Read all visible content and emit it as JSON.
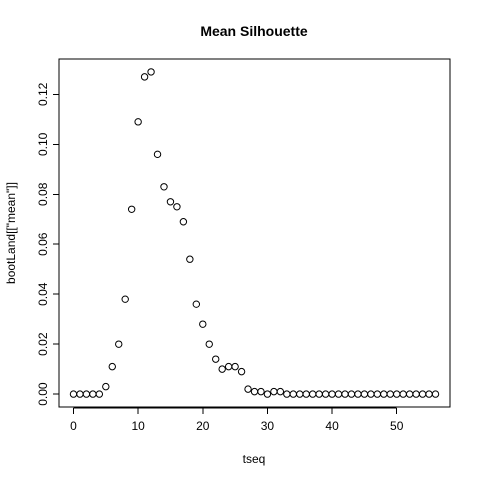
{
  "chart_data": {
    "type": "scatter",
    "title": "Mean Silhouette",
    "xlabel": "tseq",
    "ylabel": "bootLand[[\"mean\"]]",
    "xlim": [
      0,
      56
    ],
    "ylim": [
      0,
      0.13
    ],
    "x_ticks": [
      0,
      10,
      20,
      30,
      40,
      50
    ],
    "y_ticks": [
      0.0,
      0.02,
      0.04,
      0.06,
      0.08,
      0.1,
      0.12
    ],
    "x_tick_labels": [
      "0",
      "10",
      "20",
      "30",
      "40",
      "50"
    ],
    "y_tick_labels": [
      "0.00",
      "0.02",
      "0.04",
      "0.06",
      "0.08",
      "0.10",
      "0.12"
    ],
    "grid": false,
    "point_style": "open-circle",
    "series": [
      {
        "x": [
          0,
          1,
          2,
          3,
          4,
          5,
          6,
          7,
          8,
          9,
          10,
          11,
          12,
          13,
          14,
          15,
          16,
          17,
          18,
          19,
          20,
          21,
          22,
          23,
          24,
          25,
          26,
          27,
          28,
          29,
          30,
          31,
          32,
          33,
          34,
          35,
          36,
          37,
          38,
          39,
          40,
          41,
          42,
          43,
          44,
          45,
          46,
          47,
          48,
          49,
          50,
          51,
          52,
          53,
          54,
          55,
          56
        ],
        "y": [
          0.0,
          0.0,
          0.0,
          0.0,
          0.0,
          0.003,
          0.011,
          0.02,
          0.038,
          0.074,
          0.109,
          0.127,
          0.129,
          0.096,
          0.083,
          0.077,
          0.075,
          0.069,
          0.054,
          0.036,
          0.028,
          0.02,
          0.014,
          0.01,
          0.011,
          0.011,
          0.009,
          0.002,
          0.001,
          0.001,
          0.0,
          0.001,
          0.001,
          0.0,
          0.0,
          0.0,
          0.0,
          0.0,
          0.0,
          0.0,
          0.0,
          0.0,
          0.0,
          0.0,
          0.0,
          0.0,
          0.0,
          0.0,
          0.0,
          0.0,
          0.0,
          0.0,
          0.0,
          0.0,
          0.0,
          0.0,
          0.0
        ]
      }
    ]
  }
}
